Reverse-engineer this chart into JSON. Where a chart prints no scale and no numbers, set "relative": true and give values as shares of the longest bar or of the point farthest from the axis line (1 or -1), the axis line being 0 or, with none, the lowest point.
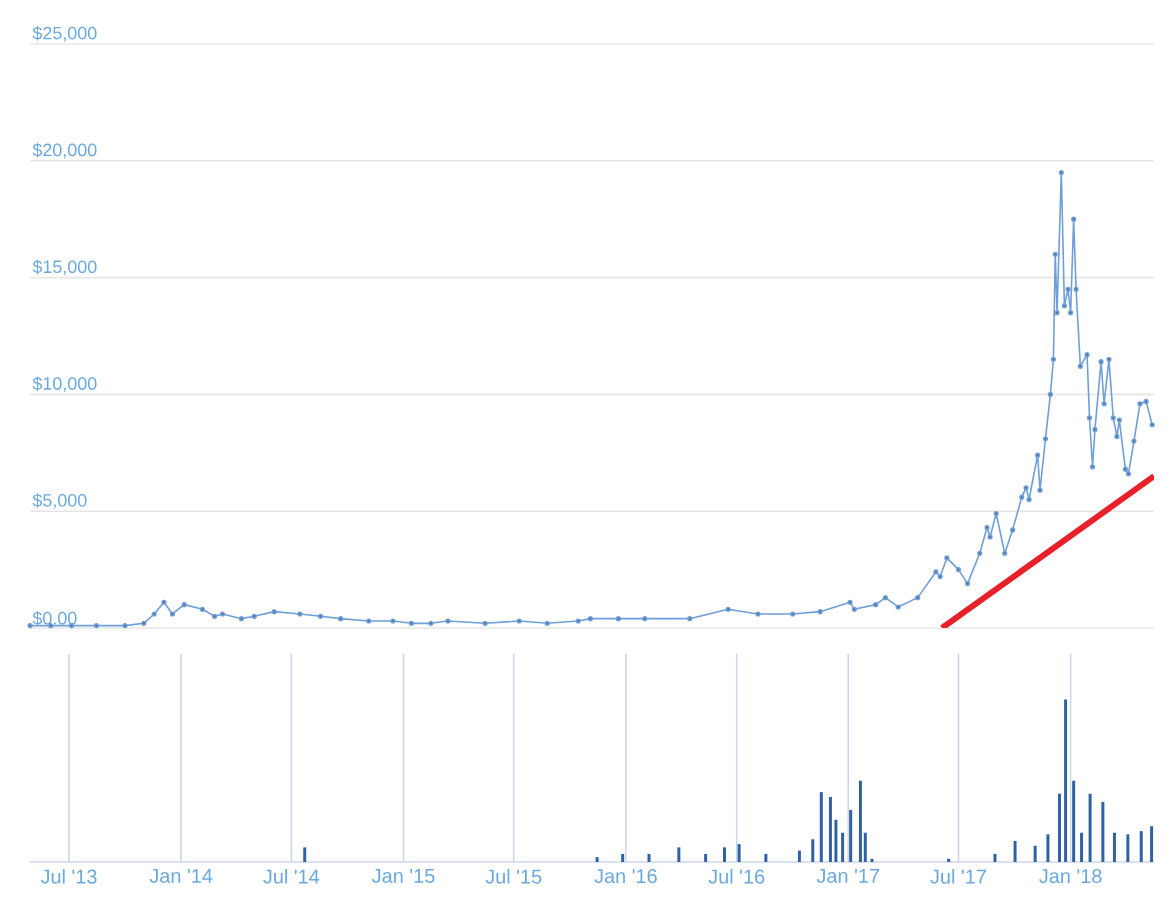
{
  "chart_data": [
    {
      "type": "line",
      "marker": "circle",
      "grid": "y",
      "tick_labels": "y",
      "xlim": [
        "2013-04-28",
        "2018-05-18"
      ],
      "ylim": [
        0,
        25000
      ],
      "yticks": [
        {
          "value": 0,
          "label": "$0.00"
        },
        {
          "value": 5000,
          "label": "$5,000"
        },
        {
          "value": 10000,
          "label": "$10,000"
        },
        {
          "value": 15000,
          "label": "$15,000"
        },
        {
          "value": 20000,
          "label": "$20,000"
        },
        {
          "value": 25000,
          "label": "$25,000"
        }
      ],
      "x": [
        "2013-04-28",
        "2013-06-01",
        "2013-07-05",
        "2013-08-15",
        "2013-10-01",
        "2013-11-01",
        "2013-11-18",
        "2013-12-04",
        "2013-12-18",
        "2014-01-06",
        "2014-02-05",
        "2014-02-25",
        "2014-03-10",
        "2014-04-10",
        "2014-05-01",
        "2014-06-03",
        "2014-07-15",
        "2014-08-18",
        "2014-09-20",
        "2014-11-05",
        "2014-12-15",
        "2015-01-14",
        "2015-02-15",
        "2015-03-15",
        "2015-05-15",
        "2015-07-10",
        "2015-08-25",
        "2015-10-15",
        "2015-11-04",
        "2015-12-20",
        "2016-02-01",
        "2016-04-15",
        "2016-06-17",
        "2016-08-05",
        "2016-10-01",
        "2016-11-15",
        "2017-01-04",
        "2017-01-11",
        "2017-02-15",
        "2017-03-03",
        "2017-03-24",
        "2017-04-25",
        "2017-05-25",
        "2017-06-01",
        "2017-06-12",
        "2017-07-01",
        "2017-07-16",
        "2017-08-05",
        "2017-08-17",
        "2017-08-22",
        "2017-09-01",
        "2017-09-15",
        "2017-09-28",
        "2017-10-13",
        "2017-10-20",
        "2017-10-25",
        "2017-11-08",
        "2017-11-12",
        "2017-11-21",
        "2017-11-29",
        "2017-12-04",
        "2017-12-07",
        "2017-12-10",
        "2017-12-17",
        "2017-12-22",
        "2017-12-28",
        "2018-01-01",
        "2018-01-06",
        "2018-01-10",
        "2018-01-17",
        "2018-01-28",
        "2018-02-01",
        "2018-02-06",
        "2018-02-10",
        "2018-02-20",
        "2018-02-25",
        "2018-03-05",
        "2018-03-12",
        "2018-03-18",
        "2018-03-22",
        "2018-04-01",
        "2018-04-06",
        "2018-04-15",
        "2018-04-25",
        "2018-05-05",
        "2018-05-15"
      ],
      "series": [
        {
          "color": "#6f9fd8",
          "values": [
            100,
            100,
            100,
            100,
            100,
            200,
            600,
            1100,
            600,
            1000,
            800,
            500,
            600,
            400,
            500,
            700,
            600,
            500,
            400,
            300,
            300,
            200,
            200,
            300,
            200,
            300,
            200,
            300,
            400,
            400,
            400,
            400,
            800,
            600,
            600,
            700,
            1100,
            800,
            1000,
            1300,
            900,
            1300,
            2400,
            2200,
            3000,
            2500,
            1900,
            3200,
            4300,
            3900,
            4900,
            3200,
            4200,
            5600,
            6000,
            5500,
            7400,
            5900,
            8100,
            10000,
            11500,
            16000,
            13500,
            19500,
            13800,
            14500,
            13500,
            17500,
            14500,
            11200,
            11700,
            9000,
            6900,
            8500,
            11400,
            9600,
            11500,
            9000,
            8200,
            8900,
            6800,
            6600,
            8000,
            9600,
            9700,
            8700
          ]
        },
        {
          "type": "line",
          "marker": "none",
          "color": "#e8202a",
          "x": [
            "2017-06-04",
            "2018-05-18"
          ],
          "values": [
            0,
            6500
          ]
        }
      ]
    },
    {
      "type": "bar",
      "relative": true,
      "grid": "x",
      "tick_labels": "x",
      "color": "#2f62a3",
      "xlim": [
        "2013-04-28",
        "2018-05-18"
      ],
      "xticks": [
        {
          "value": "2013-07-01",
          "label": "Jul '13"
        },
        {
          "value": "2014-01-01",
          "label": "Jan '14"
        },
        {
          "value": "2014-07-01",
          "label": "Jul '14"
        },
        {
          "value": "2015-01-01",
          "label": "Jan '15"
        },
        {
          "value": "2015-07-01",
          "label": "Jul '15"
        },
        {
          "value": "2016-01-01",
          "label": "Jan '16"
        },
        {
          "value": "2016-07-01",
          "label": "Jul '16"
        },
        {
          "value": "2017-01-01",
          "label": "Jan '17"
        },
        {
          "value": "2017-07-01",
          "label": "Jul '17"
        },
        {
          "value": "2018-01-01",
          "label": "Jan '18"
        }
      ],
      "x": [
        "2014-07-23",
        "2015-11-15",
        "2015-12-27",
        "2016-02-08",
        "2016-03-28",
        "2016-05-11",
        "2016-06-11",
        "2016-07-05",
        "2016-08-18",
        "2016-10-12",
        "2016-11-03",
        "2016-11-17",
        "2016-12-02",
        "2016-12-11",
        "2016-12-22",
        "2017-01-05",
        "2017-01-21",
        "2017-01-29",
        "2017-02-09",
        "2017-06-15",
        "2017-08-30",
        "2017-10-02",
        "2017-11-04",
        "2017-11-25",
        "2017-12-14",
        "2017-12-24",
        "2018-01-06",
        "2018-01-19",
        "2018-02-02",
        "2018-02-23",
        "2018-03-14",
        "2018-04-05",
        "2018-04-27",
        "2018-05-14"
      ],
      "values": [
        0.09,
        0.03,
        0.05,
        0.05,
        0.09,
        0.05,
        0.09,
        0.11,
        0.05,
        0.07,
        0.14,
        0.43,
        0.4,
        0.26,
        0.18,
        0.32,
        0.5,
        0.18,
        0.02,
        0.02,
        0.05,
        0.13,
        0.1,
        0.17,
        0.42,
        1.0,
        0.5,
        0.18,
        0.42,
        0.37,
        0.18,
        0.17,
        0.19,
        0.22
      ]
    }
  ]
}
